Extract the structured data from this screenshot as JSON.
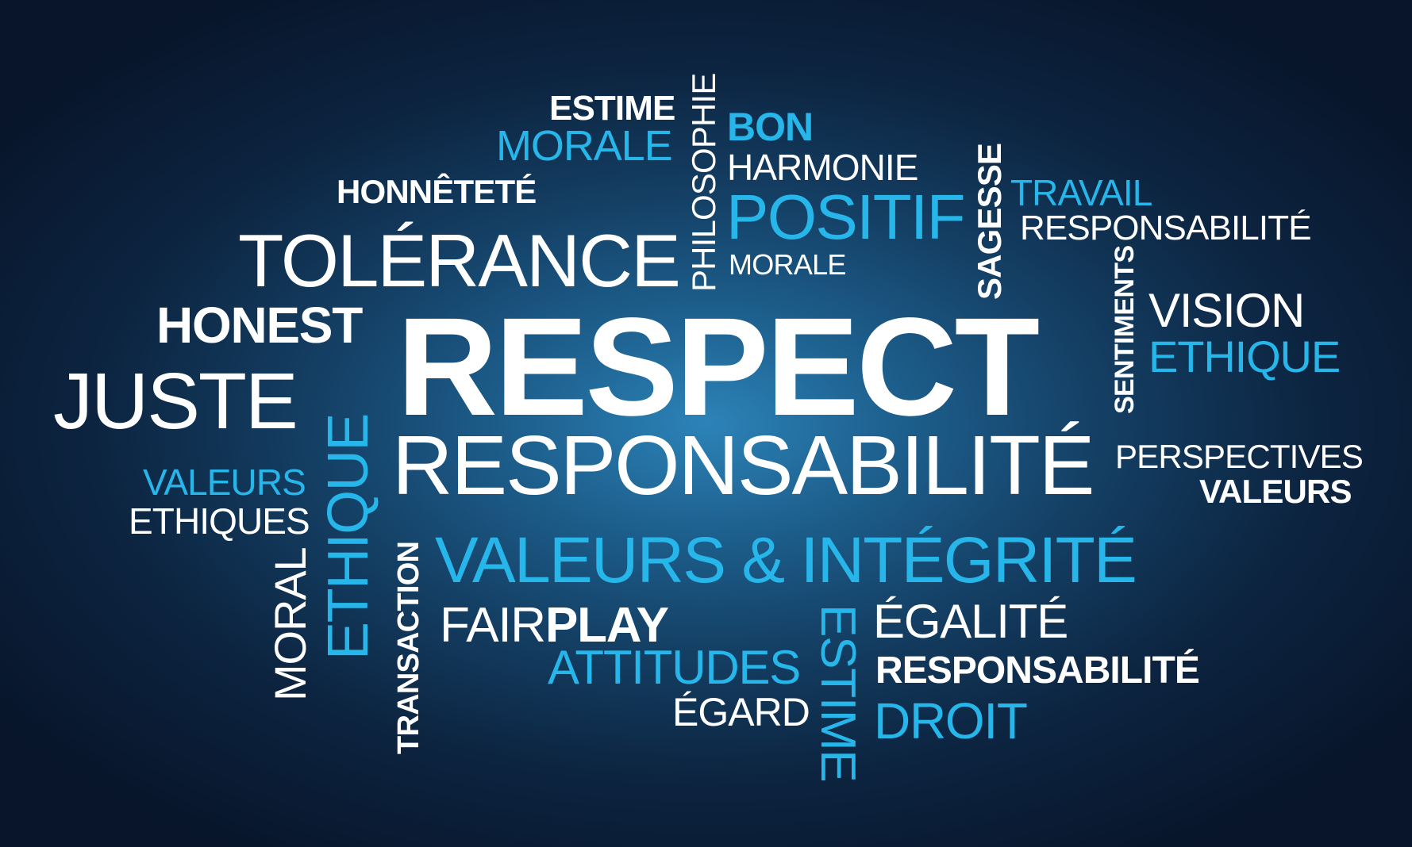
{
  "words": {
    "estime_top": "ESTIME",
    "morale_top": "MORALE",
    "philosophie": "PHILOSOPHIE",
    "bon": "BON",
    "harmonie": "HARMONIE",
    "honnetete": "HONNÊTETÉ",
    "positif": "POSITIF",
    "sagesse": "SAGESSE",
    "travail": "TRAVAIL",
    "responsabilite_top": "RESPONSABILITÉ",
    "tolerance": "TOLÉRANCE",
    "morale_mid": "MORALE",
    "honest": "HONEST",
    "respect": "RESPECT",
    "sentiments": "SENTIMENTS",
    "vision": "VISION",
    "ethique_right": "ETHIQUE",
    "juste": "JUSTE",
    "ethique_vertical": "ETHIQUE",
    "responsabilite_main": "RESPONSABILITÉ",
    "perspectives": "PERSPECTIVES",
    "valeurs_right": "VALEURS",
    "valeurs_left": "VALEURS",
    "ethiques": "ETHIQUES",
    "valeurs_integrite": "VALEURS & INTÉGRITÉ",
    "moral": "MORAL",
    "transaction": "TRANSACTION",
    "fair": "FAIR",
    "play": "PLAY",
    "estime_vertical": "ESTIME",
    "egalite": "ÉGALITÉ",
    "attitudes": "ATTITUDES",
    "responsabilite_bottom": "RESPONSABILITÉ",
    "egard": "ÉGARD",
    "droit": "DROIT"
  },
  "colors": {
    "white": "#ffffff",
    "blue": "#27b6ea",
    "background_center": "#2c83b8",
    "background_edge": "#08152a"
  }
}
